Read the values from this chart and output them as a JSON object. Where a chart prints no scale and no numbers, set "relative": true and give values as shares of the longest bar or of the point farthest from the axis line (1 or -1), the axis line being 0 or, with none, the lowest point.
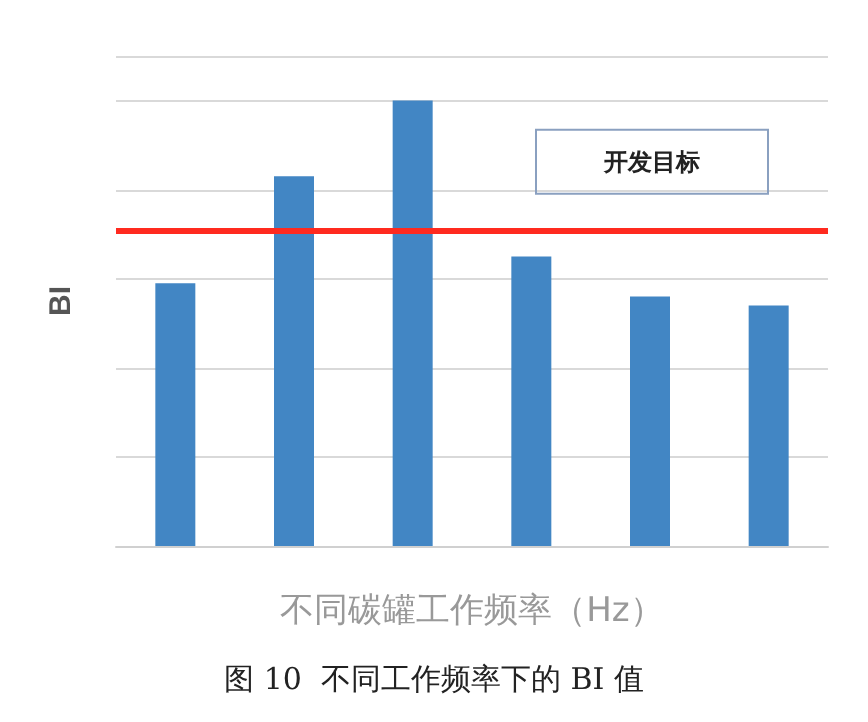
{
  "chart_data": {
    "type": "bar",
    "relative": true,
    "categories": [
      null,
      null,
      null,
      null,
      null,
      null
    ],
    "values": [
      0.59,
      0.83,
      1,
      0.65,
      0.56,
      0.54
    ],
    "color": "#4286c4",
    "xlabel": "不同碳罐工作频率（Hz）",
    "ylabel": "BI",
    "grid": "y",
    "ref_lines": [
      {
        "axis": "y",
        "value": 0.71,
        "label": "开发目标",
        "color": "#ff2a1f"
      }
    ],
    "annotations": [
      "图 10  不同工作频率下的 BI 值"
    ]
  }
}
